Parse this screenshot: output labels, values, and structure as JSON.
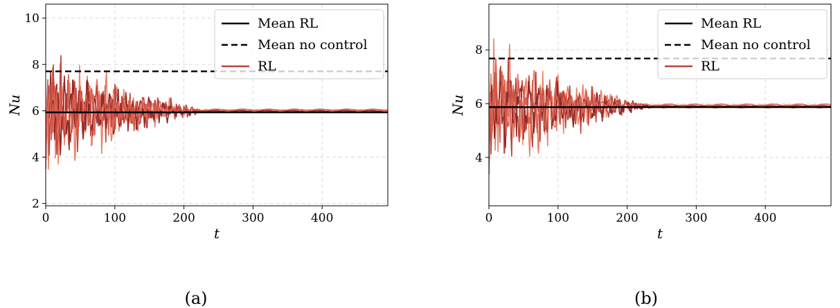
{
  "chart_data": [
    {
      "type": "line",
      "panel": "(a)",
      "xlabel": "t",
      "ylabel": "Nu",
      "xlim": [
        0,
        495
      ],
      "ylim": [
        1.9,
        10.6
      ],
      "xticks": [
        0,
        100,
        200,
        300,
        400
      ],
      "yticks": [
        2,
        4,
        6,
        8,
        10
      ],
      "grid": true,
      "legend_position": "top-right",
      "mean_rl": 5.93,
      "mean_no_control": 7.7,
      "series": [
        {
          "name": "Mean RL",
          "style": "solid",
          "color": "#000000"
        },
        {
          "name": "Mean no control",
          "style": "dashed",
          "color": "#000000"
        },
        {
          "name": "RL",
          "style": "solid",
          "color": "#c0413b"
        }
      ],
      "rl_runs": [
        {
          "color": "#e8846a",
          "final": 6.02,
          "amp": 3.4,
          "period": 13,
          "decay_end": 225,
          "seed": 3
        },
        {
          "color": "#c0413b",
          "final": 6.0,
          "amp": 3.0,
          "period": 10,
          "decay_end": 240,
          "seed": 7
        },
        {
          "color": "#8e2a27",
          "final": 5.98,
          "amp": 2.5,
          "period": 11,
          "decay_end": 235,
          "seed": 11
        },
        {
          "color": "#d9604f",
          "final": 6.04,
          "amp": 2.2,
          "period": 9,
          "decay_end": 215,
          "seed": 17
        }
      ]
    },
    {
      "type": "line",
      "panel": "(b)",
      "xlabel": "t",
      "ylabel": "Nu",
      "xlim": [
        0,
        495
      ],
      "ylim": [
        2.2,
        9.7
      ],
      "xticks": [
        0,
        100,
        200,
        300,
        400
      ],
      "yticks": [
        4,
        6,
        8
      ],
      "grid": true,
      "legend_position": "top-right",
      "mean_rl": 5.87,
      "mean_no_control": 7.68,
      "series": [
        {
          "name": "Mean RL",
          "style": "solid",
          "color": "#000000"
        },
        {
          "name": "Mean no control",
          "style": "dashed",
          "color": "#000000"
        },
        {
          "name": "RL",
          "style": "solid",
          "color": "#c0413b"
        }
      ],
      "rl_runs": [
        {
          "color": "#e8846a",
          "final": 5.92,
          "amp": 3.2,
          "period": 12,
          "decay_end": 230,
          "seed": 5
        },
        {
          "color": "#c0413b",
          "final": 5.9,
          "amp": 2.6,
          "period": 10,
          "decay_end": 240,
          "seed": 9
        },
        {
          "color": "#8e2a27",
          "final": 5.88,
          "amp": 1.9,
          "period": 14,
          "decay_end": 250,
          "seed": 13
        },
        {
          "color": "#d9604f",
          "final": 5.95,
          "amp": 2.0,
          "period": 11,
          "decay_end": 220,
          "seed": 21
        }
      ]
    }
  ]
}
